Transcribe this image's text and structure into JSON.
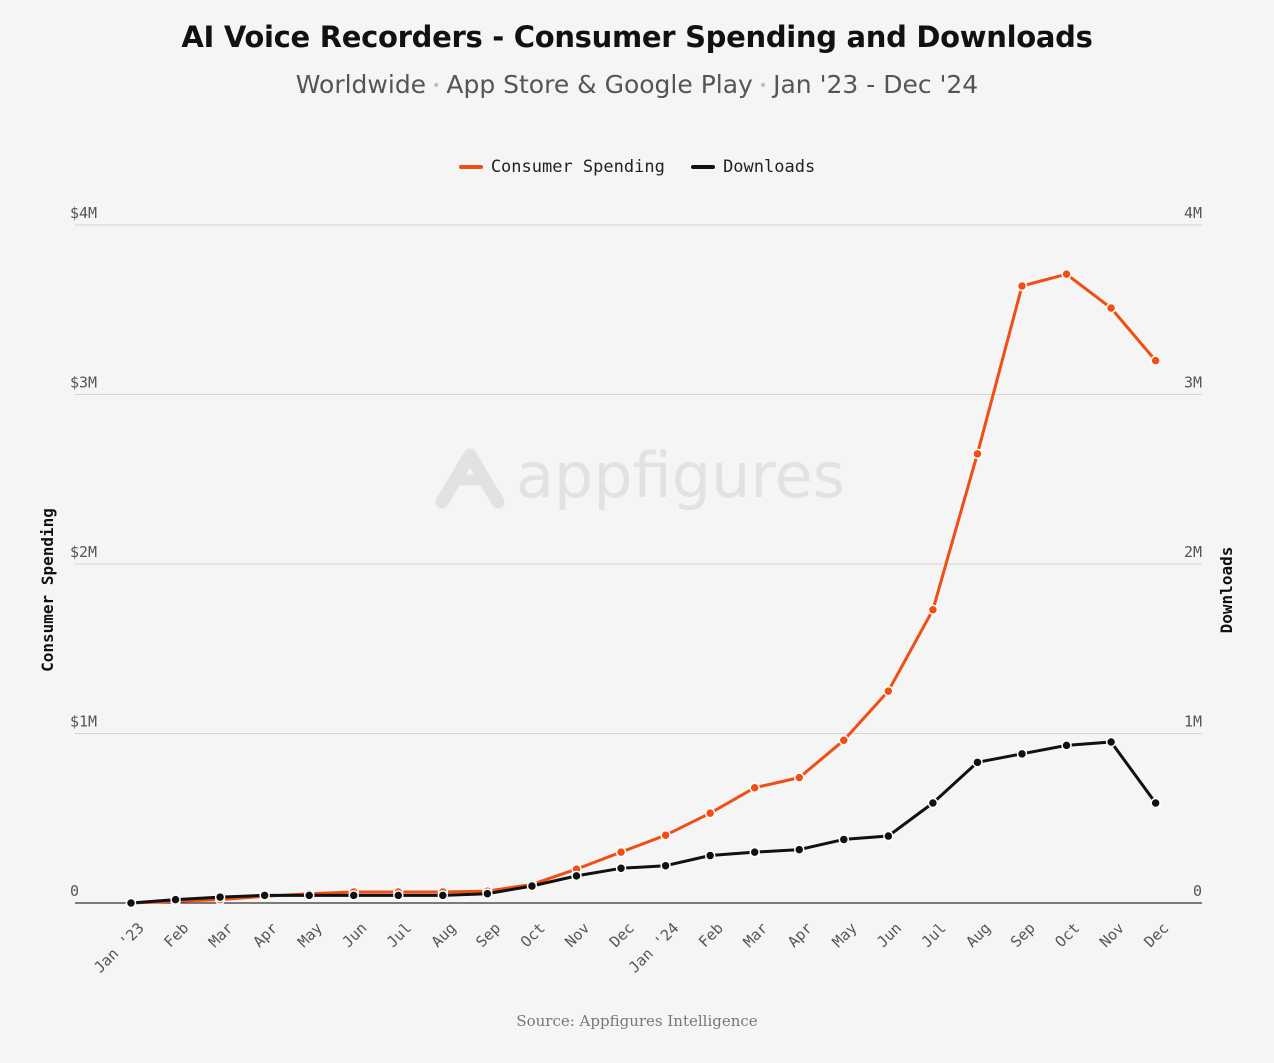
{
  "chart_data": {
    "type": "line",
    "title": "AI Voice Recorders - Consumer Spending and Downloads",
    "subtitle_parts": [
      "Worldwide",
      "App Store & Google Play",
      "Jan '23 - Dec '24"
    ],
    "source": "Source: Appfigures Intelligence",
    "watermark": "appfigures",
    "legend_placement": "top-center",
    "grid": true,
    "categories": [
      "Jan '23",
      "Feb",
      "Mar",
      "Apr",
      "May",
      "Jun",
      "Jul",
      "Aug",
      "Sep",
      "Oct",
      "Nov",
      "Dec",
      "Jan '24",
      "Feb",
      "Mar",
      "Apr",
      "May",
      "Jun",
      "Jul",
      "Aug",
      "Sep",
      "Oct",
      "Nov",
      "Dec"
    ],
    "y_left": {
      "label": "Consumer Spending",
      "ylim": [
        0,
        4000000
      ],
      "ticks": [
        0,
        1000000,
        2000000,
        3000000,
        4000000
      ],
      "tick_labels": [
        "0",
        "$1M",
        "$2M",
        "$3M",
        "$4M"
      ]
    },
    "y_right": {
      "label": "Downloads",
      "ylim": [
        0,
        4000000
      ],
      "ticks": [
        0,
        1000000,
        2000000,
        3000000,
        4000000
      ],
      "tick_labels": [
        "0",
        "1M",
        "2M",
        "3M",
        "4M"
      ]
    },
    "series": [
      {
        "name": "Consumer Spending",
        "axis": "left",
        "color": "#f04e12",
        "values": [
          0,
          10000,
          20000,
          40000,
          55000,
          65000,
          65000,
          65000,
          70000,
          110000,
          200000,
          300000,
          400000,
          530000,
          680000,
          740000,
          960000,
          1250000,
          1730000,
          2650000,
          3640000,
          3710000,
          3510000,
          3200000
        ]
      },
      {
        "name": "Downloads",
        "axis": "right",
        "color": "#111111",
        "values": [
          0,
          20000,
          35000,
          45000,
          45000,
          45000,
          45000,
          45000,
          55000,
          100000,
          160000,
          205000,
          220000,
          280000,
          300000,
          315000,
          375000,
          395000,
          590000,
          830000,
          880000,
          930000,
          950000,
          590000
        ]
      }
    ]
  }
}
